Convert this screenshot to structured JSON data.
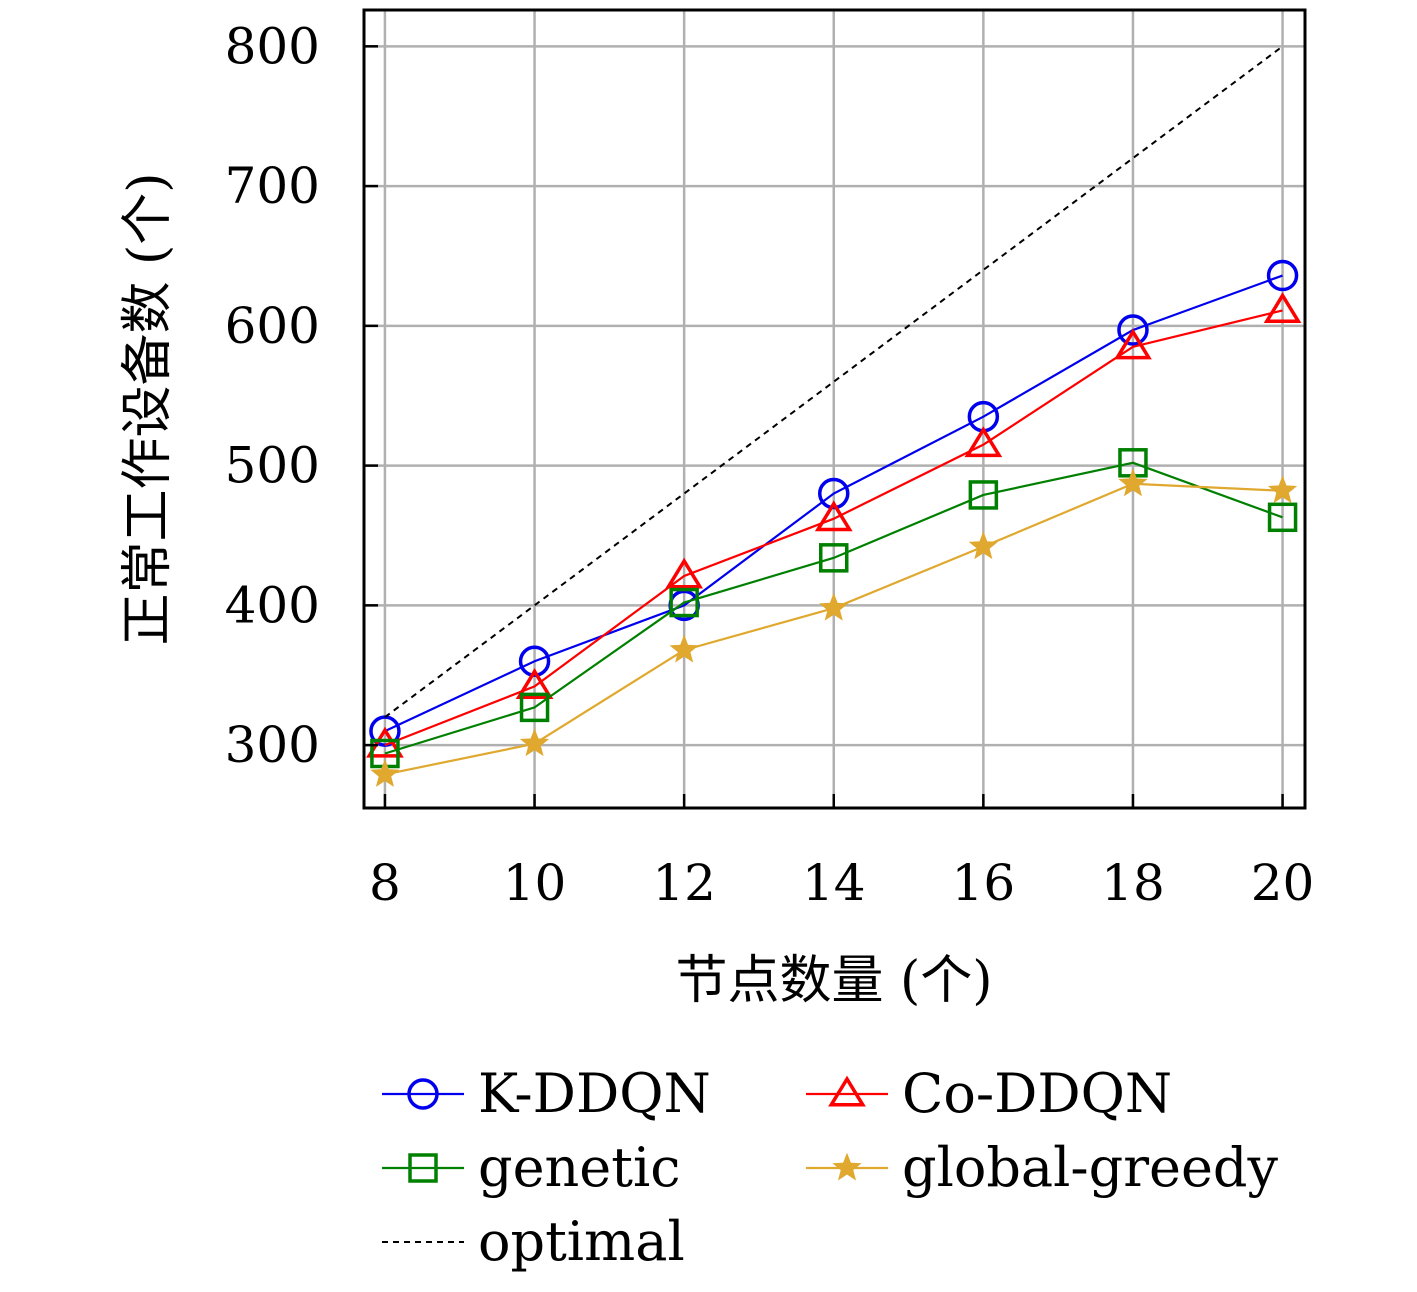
{
  "chart_data": {
    "type": "line",
    "xlabel": "节点数量 (个)",
    "ylabel": "正常工作设备数 (个)",
    "x": [
      8,
      10,
      12,
      14,
      16,
      18,
      20
    ],
    "xticks": [
      "8",
      "10",
      "12",
      "14",
      "16",
      "18",
      "20"
    ],
    "yticks": [
      "300",
      "400",
      "500",
      "600",
      "700",
      "800"
    ],
    "xlim": [
      7.72,
      20.3
    ],
    "ylim": [
      255,
      826
    ],
    "grid": true,
    "legend_position": "bottom",
    "series": [
      {
        "name": "K-DDQN",
        "color": "#0000ee",
        "marker": "circle",
        "style": "solid",
        "values": [
          310,
          360,
          400,
          480,
          535,
          597,
          636
        ]
      },
      {
        "name": "Co-DDQN",
        "color": "#ff0000",
        "marker": "triangle",
        "style": "solid",
        "values": [
          300,
          342,
          421,
          462,
          515,
          585,
          611
        ]
      },
      {
        "name": "genetic",
        "color": "#008000",
        "marker": "square",
        "style": "solid",
        "values": [
          294,
          327,
          402,
          434,
          479,
          502,
          463
        ]
      },
      {
        "name": "global-greedy",
        "color": "#e0a82e",
        "marker": "star",
        "style": "solid",
        "values": [
          279,
          301,
          368,
          398,
          442,
          487,
          482
        ]
      },
      {
        "name": "optimal",
        "color": "#000000",
        "marker": "none",
        "style": "dashed",
        "values": [
          320,
          400,
          480,
          560,
          640,
          720,
          800
        ]
      }
    ]
  }
}
